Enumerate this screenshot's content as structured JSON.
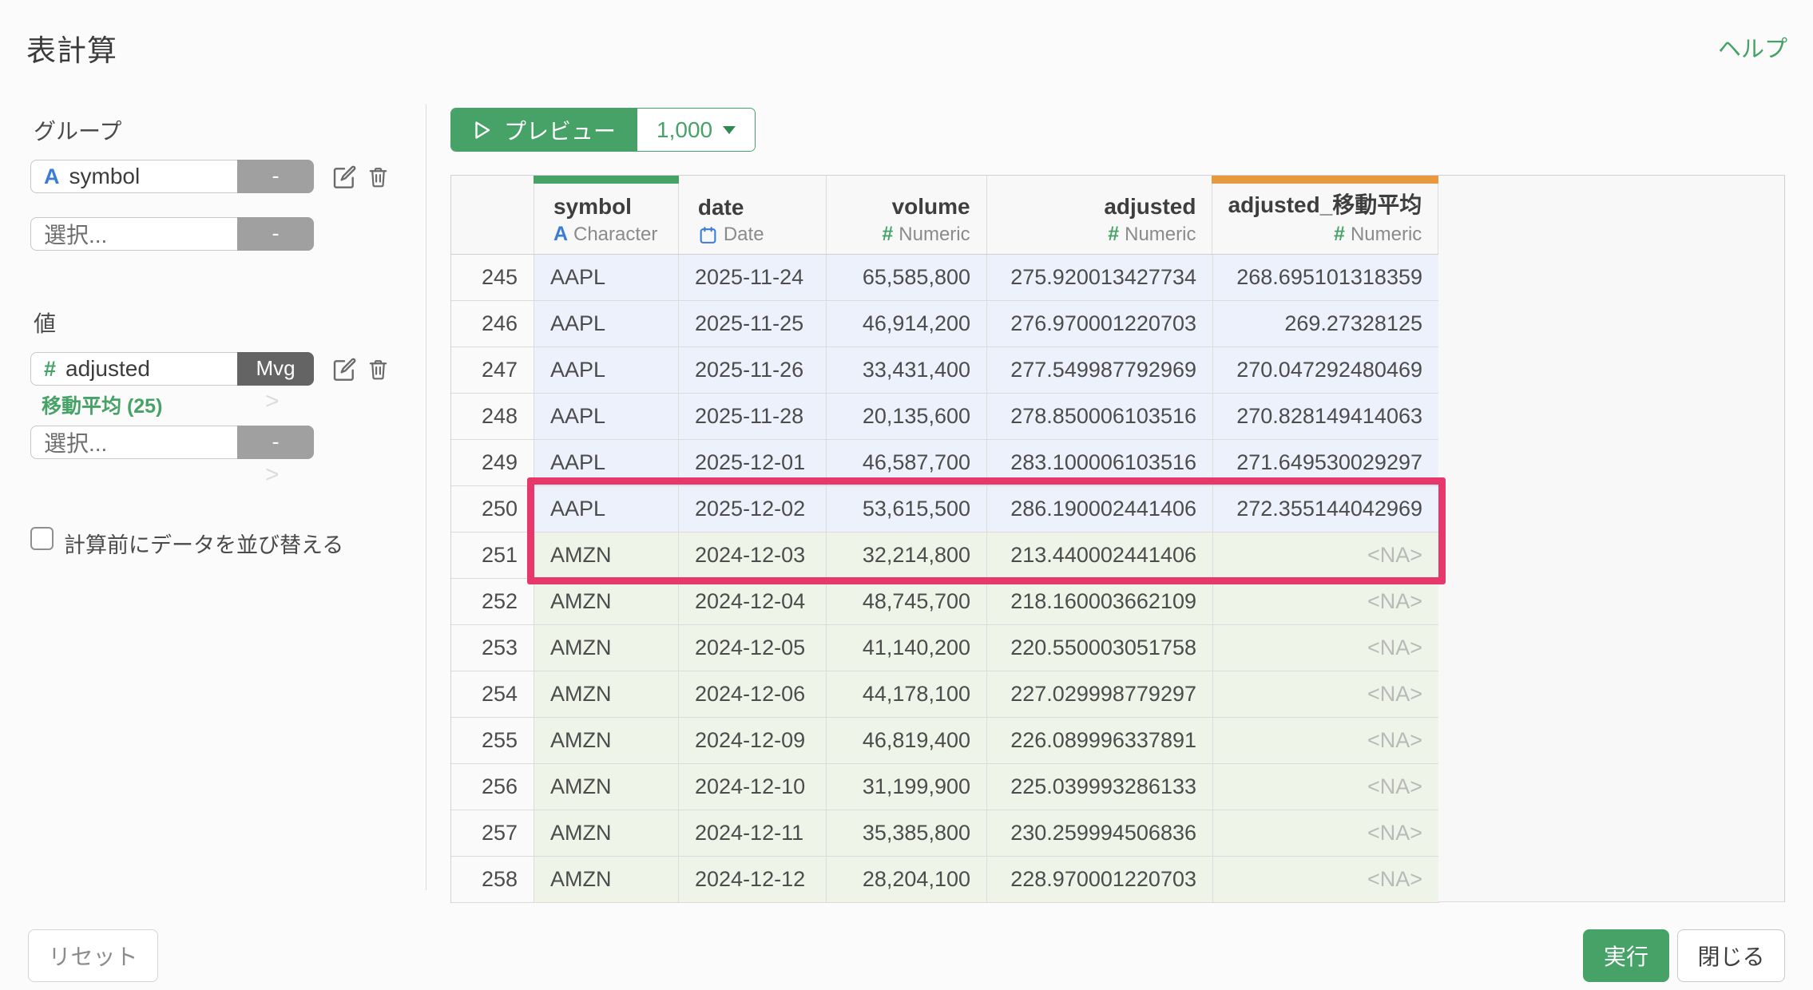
{
  "dialog": {
    "title": "表計算",
    "help_label": "ヘルプ"
  },
  "sidebar": {
    "group_label": "グループ",
    "group_field": {
      "type_icon": "A",
      "name": "symbol",
      "badge": "-"
    },
    "group_select": {
      "placeholder": "選択...",
      "badge": "-"
    },
    "value_label": "値",
    "value_field": {
      "type_icon": "#",
      "name": "adjusted",
      "badge": "Mvg",
      "calc_note": "移動平均 (25)"
    },
    "value_select": {
      "placeholder": "選択...",
      "badge": "-"
    },
    "sort_checkbox_label": "計算前にデータを並び替える",
    "sort_checkbox_checked": false
  },
  "toolbar": {
    "preview_label": "プレビュー",
    "row_limit": "1,000"
  },
  "table": {
    "columns": [
      {
        "label": "",
        "type": "",
        "align": "right"
      },
      {
        "label": "symbol",
        "type_icon": "A",
        "type": "Character",
        "align": "left",
        "accent": "green"
      },
      {
        "label": "date",
        "type_icon": "calendar",
        "type": "Date",
        "align": "left"
      },
      {
        "label": "volume",
        "type_icon": "#",
        "type": "Numeric",
        "align": "right"
      },
      {
        "label": "adjusted",
        "type_icon": "#",
        "type": "Numeric",
        "align": "right"
      },
      {
        "label": "adjusted_移動平均",
        "type_icon": "#",
        "type": "Numeric",
        "align": "right",
        "accent": "orange"
      }
    ],
    "na_text": "<NA>",
    "row_colors": {
      "AAPL": "#edf1fb",
      "AMZN": "#eff4e9"
    },
    "highlighted_row_numbers": [
      "250",
      "251"
    ],
    "rows": [
      {
        "n": "245",
        "symbol": "AAPL",
        "date": "2025-11-24",
        "volume": "65,585,800",
        "adjusted": "275.920013427734",
        "mvg": "268.695101318359"
      },
      {
        "n": "246",
        "symbol": "AAPL",
        "date": "2025-11-25",
        "volume": "46,914,200",
        "adjusted": "276.970001220703",
        "mvg": "269.27328125"
      },
      {
        "n": "247",
        "symbol": "AAPL",
        "date": "2025-11-26",
        "volume": "33,431,400",
        "adjusted": "277.549987792969",
        "mvg": "270.047292480469"
      },
      {
        "n": "248",
        "symbol": "AAPL",
        "date": "2025-11-28",
        "volume": "20,135,600",
        "adjusted": "278.850006103516",
        "mvg": "270.828149414063"
      },
      {
        "n": "249",
        "symbol": "AAPL",
        "date": "2025-12-01",
        "volume": "46,587,700",
        "adjusted": "283.100006103516",
        "mvg": "271.649530029297"
      },
      {
        "n": "250",
        "symbol": "AAPL",
        "date": "2025-12-02",
        "volume": "53,615,500",
        "adjusted": "286.190002441406",
        "mvg": "272.355144042969"
      },
      {
        "n": "251",
        "symbol": "AMZN",
        "date": "2024-12-03",
        "volume": "32,214,800",
        "adjusted": "213.440002441406",
        "mvg": "<NA>"
      },
      {
        "n": "252",
        "symbol": "AMZN",
        "date": "2024-12-04",
        "volume": "48,745,700",
        "adjusted": "218.160003662109",
        "mvg": "<NA>"
      },
      {
        "n": "253",
        "symbol": "AMZN",
        "date": "2024-12-05",
        "volume": "41,140,200",
        "adjusted": "220.550003051758",
        "mvg": "<NA>"
      },
      {
        "n": "254",
        "symbol": "AMZN",
        "date": "2024-12-06",
        "volume": "44,178,100",
        "adjusted": "227.029998779297",
        "mvg": "<NA>"
      },
      {
        "n": "255",
        "symbol": "AMZN",
        "date": "2024-12-09",
        "volume": "46,819,400",
        "adjusted": "226.089996337891",
        "mvg": "<NA>"
      },
      {
        "n": "256",
        "symbol": "AMZN",
        "date": "2024-12-10",
        "volume": "31,199,900",
        "adjusted": "225.039993286133",
        "mvg": "<NA>"
      },
      {
        "n": "257",
        "symbol": "AMZN",
        "date": "2024-12-11",
        "volume": "35,385,800",
        "adjusted": "230.259994506836",
        "mvg": "<NA>"
      },
      {
        "n": "258",
        "symbol": "AMZN",
        "date": "2024-12-12",
        "volume": "28,204,100",
        "adjusted": "228.970001220703",
        "mvg": "<NA>"
      }
    ]
  },
  "footer": {
    "reset_label": "リセット",
    "run_label": "実行",
    "close_label": "閉じる"
  },
  "colors": {
    "green": "#46a266",
    "green_dark": "#2f8a51",
    "orange": "#e8993f",
    "blue": "#3b7cd5",
    "highlight": "#e7386b",
    "na": "#b9b9b9",
    "badge_gray": "#a0a0a0",
    "badge_dark": "#646464",
    "help_green": "#46a266"
  }
}
